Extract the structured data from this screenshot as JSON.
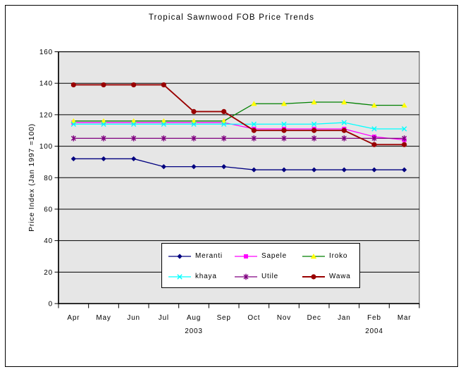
{
  "window": {
    "background": "#ffffff",
    "frame_border_color": "#000000"
  },
  "chart_data": {
    "type": "line",
    "title": "Tropical Sawnwood FOB Price Trends",
    "ylabel": "Price Index (Jan 1997 =100)",
    "xlabel": "",
    "categories": [
      "Apr",
      "May",
      "Jun",
      "Jul",
      "Aug",
      "Sep",
      "Oct",
      "Nov",
      "Dec",
      "Jan",
      "Feb",
      "Mar"
    ],
    "year_groups": [
      {
        "label": "2003",
        "span": [
          0,
          8
        ]
      },
      {
        "label": "2004",
        "span": [
          9,
          11
        ]
      }
    ],
    "ylim": [
      0,
      160
    ],
    "ytick_step": 20,
    "yticks": [
      0,
      20,
      40,
      60,
      80,
      100,
      120,
      140,
      160
    ],
    "grid": true,
    "plot_bg": "#e6e6e6",
    "plot_border_color": "#808080",
    "grid_color": "#000000",
    "axis_color": "#000000",
    "legend_position": "inside-bottom-center",
    "legend_bg": "#ffffff",
    "legend_border_color": "#000000",
    "series": [
      {
        "name": "Meranti",
        "color": "#000080",
        "marker": "diamond",
        "marker_color": "#000080",
        "values": [
          92,
          92,
          92,
          87,
          87,
          87,
          85,
          85,
          85,
          85,
          85,
          85
        ]
      },
      {
        "name": "Sapele",
        "color": "#ff00ff",
        "marker": "square",
        "marker_color": "#ff00ff",
        "values": [
          115,
          115,
          115,
          115,
          115,
          115,
          111,
          111,
          111,
          111,
          106,
          104
        ]
      },
      {
        "name": "Iroko",
        "color": "#008000",
        "marker": "triangle",
        "marker_color": "#ffff00",
        "values": [
          116,
          116,
          116,
          116,
          116,
          116,
          127,
          127,
          128,
          128,
          126,
          126
        ]
      },
      {
        "name": "khaya",
        "color": "#00ffff",
        "marker": "x",
        "marker_color": "#00ffff",
        "values": [
          114,
          114,
          114,
          114,
          114,
          114,
          114,
          114,
          114,
          115,
          111,
          111
        ]
      },
      {
        "name": "Utile",
        "color": "#800080",
        "marker": "star",
        "marker_color": "#800080",
        "values": [
          105,
          105,
          105,
          105,
          105,
          105,
          105,
          105,
          105,
          105,
          105,
          105
        ]
      },
      {
        "name": "Wawa",
        "color": "#990000",
        "marker": "circle",
        "marker_color": "#990000",
        "values": [
          139,
          139,
          139,
          139,
          122,
          122,
          110,
          110,
          110,
          110,
          101,
          101
        ]
      }
    ]
  }
}
